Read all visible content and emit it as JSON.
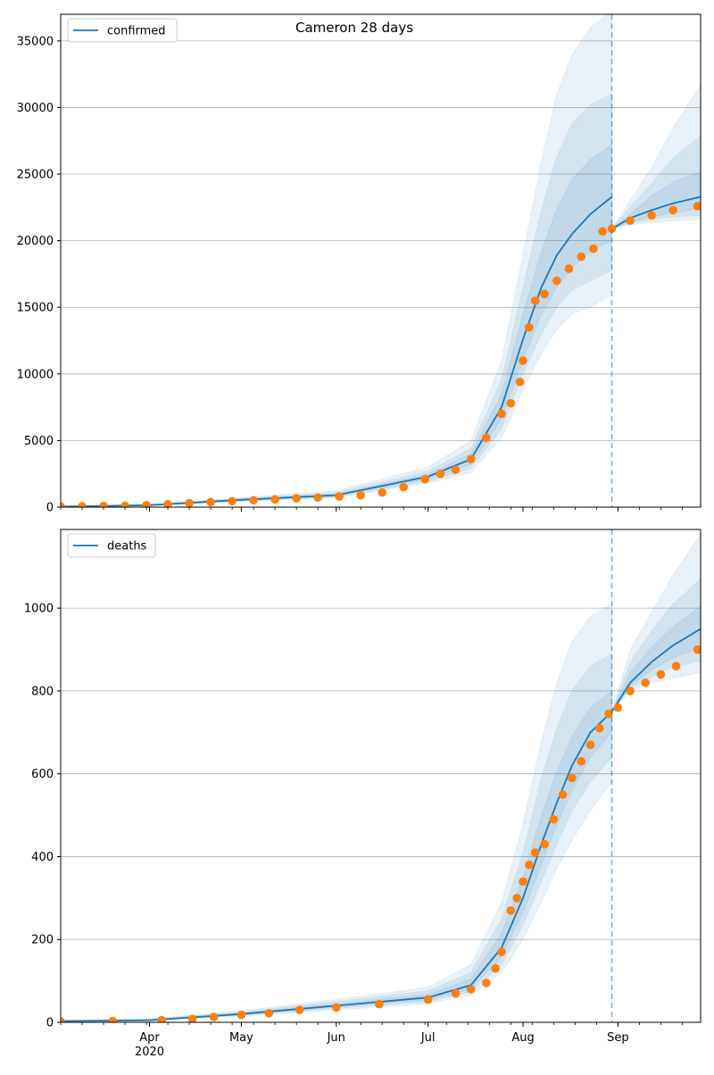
{
  "chart_data": [
    {
      "type": "line",
      "title": "Cameron 28 days",
      "legend": [
        "confirmed"
      ],
      "legend_position": "top-left",
      "grid": "y",
      "ylim": [
        0,
        37000
      ],
      "yticks": [
        0,
        5000,
        10000,
        15000,
        20000,
        25000,
        30000,
        35000
      ],
      "xlim": [
        "2020-03-03",
        "2020-09-28"
      ],
      "xticks": [
        {
          "date": "2020-04-01",
          "label": "Apr",
          "sublabel": "2020"
        },
        {
          "date": "2020-05-01",
          "label": "May"
        },
        {
          "date": "2020-06-01",
          "label": "Jun"
        },
        {
          "date": "2020-07-01",
          "label": "Jul"
        },
        {
          "date": "2020-08-01",
          "label": "Aug"
        },
        {
          "date": "2020-09-01",
          "label": "Sep"
        }
      ],
      "forecast_start": "2020-08-30",
      "colors": {
        "model": "#1f77b4",
        "observed": "#ff7f0e",
        "band": "#1f77b4"
      },
      "model": {
        "name": "confirmed",
        "x": [
          "2020-03-03",
          "2020-04-01",
          "2020-05-01",
          "2020-06-01",
          "2020-07-01",
          "2020-07-15",
          "2020-07-25",
          "2020-08-01",
          "2020-08-07",
          "2020-08-12",
          "2020-08-17",
          "2020-08-23",
          "2020-08-30"
        ],
        "y": [
          40,
          150,
          550,
          900,
          2300,
          3600,
          7500,
          12600,
          16500,
          18900,
          20500,
          22000,
          23300
        ],
        "bands": [
          {
            "lo": [
              30,
              120,
              420,
              700,
              1800,
              2600,
              5200,
              8800,
              11500,
              13300,
              14500,
              15000,
              16000
            ],
            "hi": [
              60,
              200,
              720,
              1250,
              3000,
              5000,
              11000,
              19000,
              26000,
              31000,
              34000,
              36000,
              37200
            ]
          },
          {
            "lo": [
              33,
              130,
              460,
              770,
              1950,
              2900,
              5900,
              10000,
              13000,
              15000,
              16300,
              17000,
              17800
            ],
            "hi": [
              52,
              180,
              660,
              1100,
              2700,
              4400,
              9600,
              16500,
              22300,
              26300,
              28800,
              30200,
              31000
            ]
          },
          {
            "lo": [
              36,
              140,
              500,
              830,
              2100,
              3200,
              6600,
              11000,
              14500,
              16500,
              18000,
              19200,
              20000
            ],
            "hi": [
              46,
              165,
              610,
              980,
              2500,
              4000,
              8500,
              14500,
              19200,
              22400,
              24600,
              26100,
              27200
            ]
          }
        ]
      },
      "forecast": {
        "x": [
          "2020-08-30",
          "2020-09-05",
          "2020-09-12",
          "2020-09-19",
          "2020-09-28"
        ],
        "y": [
          20900,
          21700,
          22300,
          22800,
          23300
        ],
        "bands": [
          {
            "lo": [
              20900,
              21200,
              21400,
              21500,
              21600
            ],
            "hi": [
              20900,
              23000,
              25500,
              28500,
              31700
            ]
          },
          {
            "lo": [
              20900,
              21300,
              21600,
              21800,
              21900
            ],
            "hi": [
              20900,
              22500,
              24300,
              26200,
              27900
            ]
          },
          {
            "lo": [
              20900,
              21400,
              21800,
              22100,
              22400
            ],
            "hi": [
              20900,
              22000,
              23400,
              24400,
              25200
            ]
          }
        ]
      },
      "observed": {
        "x": [
          "2020-03-03",
          "2020-03-10",
          "2020-03-17",
          "2020-03-24",
          "2020-03-31",
          "2020-04-07",
          "2020-04-14",
          "2020-04-21",
          "2020-04-28",
          "2020-05-05",
          "2020-05-12",
          "2020-05-19",
          "2020-05-26",
          "2020-06-02",
          "2020-06-09",
          "2020-06-16",
          "2020-06-23",
          "2020-06-30",
          "2020-07-05",
          "2020-07-10",
          "2020-07-15",
          "2020-07-20",
          "2020-07-25",
          "2020-07-28",
          "2020-07-31",
          "2020-08-01",
          "2020-08-03",
          "2020-08-05",
          "2020-08-08",
          "2020-08-12",
          "2020-08-16",
          "2020-08-20",
          "2020-08-24",
          "2020-08-27",
          "2020-08-30",
          "2020-09-05",
          "2020-09-12",
          "2020-09-19",
          "2020-09-27"
        ],
        "y": [
          50,
          60,
          80,
          100,
          150,
          220,
          300,
          380,
          450,
          520,
          580,
          660,
          720,
          800,
          900,
          1100,
          1500,
          2100,
          2500,
          2800,
          3600,
          5200,
          7000,
          7800,
          9400,
          11000,
          13500,
          15500,
          16000,
          17000,
          17900,
          18800,
          19400,
          20700,
          20900,
          21500,
          21900,
          22300,
          22600
        ]
      }
    },
    {
      "type": "line",
      "title": "",
      "legend": [
        "deaths"
      ],
      "legend_position": "top-left",
      "grid": "y",
      "ylim": [
        0,
        1190
      ],
      "yticks": [
        0,
        200,
        400,
        600,
        800,
        1000
      ],
      "xlim": [
        "2020-03-03",
        "2020-09-28"
      ],
      "xticks": [
        {
          "date": "2020-04-01",
          "label": "Apr",
          "sublabel": "2020"
        },
        {
          "date": "2020-05-01",
          "label": "May"
        },
        {
          "date": "2020-06-01",
          "label": "Jun"
        },
        {
          "date": "2020-07-01",
          "label": "Jul"
        },
        {
          "date": "2020-08-01",
          "label": "Aug"
        },
        {
          "date": "2020-09-01",
          "label": "Sep"
        }
      ],
      "forecast_start": "2020-08-30",
      "colors": {
        "model": "#1f77b4",
        "observed": "#ff7f0e",
        "band": "#1f77b4"
      },
      "model": {
        "name": "deaths",
        "x": [
          "2020-03-03",
          "2020-04-01",
          "2020-05-01",
          "2020-06-01",
          "2020-07-01",
          "2020-07-15",
          "2020-07-25",
          "2020-08-01",
          "2020-08-07",
          "2020-08-12",
          "2020-08-17",
          "2020-08-23",
          "2020-08-30"
        ],
        "y": [
          3,
          5,
          20,
          40,
          60,
          90,
          180,
          300,
          430,
          530,
          620,
          700,
          750
        ],
        "bands": [
          {
            "lo": [
              2,
              4,
              15,
              30,
              45,
              65,
              120,
              200,
              290,
              370,
              440,
              510,
              580
            ],
            "hi": [
              5,
              8,
              28,
              55,
              85,
              140,
              290,
              480,
              680,
              820,
              920,
              980,
              1010
            ]
          },
          {
            "lo": [
              2,
              4,
              17,
              34,
              50,
              73,
              140,
              235,
              340,
              430,
              510,
              580,
              640
            ],
            "hi": [
              4,
              7,
              25,
              50,
              76,
              120,
              250,
              410,
              590,
              710,
              800,
              860,
              890
            ]
          },
          {
            "lo": [
              3,
              5,
              18,
              37,
              54,
              80,
              158,
              265,
              380,
              475,
              560,
              640,
              700
            ],
            "hi": [
              4,
              6,
              22,
              45,
              68,
              105,
              215,
              350,
              500,
              605,
              690,
              760,
              800
            ]
          }
        ]
      },
      "forecast": {
        "x": [
          "2020-08-30",
          "2020-09-05",
          "2020-09-12",
          "2020-09-19",
          "2020-09-28"
        ],
        "y": [
          750,
          820,
          870,
          910,
          950
        ],
        "bands": [
          {
            "lo": [
              750,
              800,
              820,
              830,
              845
            ],
            "hi": [
              750,
              900,
              990,
              1080,
              1180
            ]
          },
          {
            "lo": [
              750,
              806,
              835,
              858,
              872
            ],
            "hi": [
              750,
              870,
              945,
              1010,
              1070
            ]
          },
          {
            "lo": [
              750,
              812,
              850,
              880,
              905
            ],
            "hi": [
              750,
              845,
              905,
              955,
              1005
            ]
          }
        ]
      },
      "observed": {
        "x": [
          "2020-03-03",
          "2020-03-20",
          "2020-04-05",
          "2020-04-15",
          "2020-04-22",
          "2020-05-01",
          "2020-05-10",
          "2020-05-20",
          "2020-06-01",
          "2020-06-15",
          "2020-07-01",
          "2020-07-10",
          "2020-07-15",
          "2020-07-20",
          "2020-07-23",
          "2020-07-25",
          "2020-07-28",
          "2020-07-30",
          "2020-08-01",
          "2020-08-03",
          "2020-08-05",
          "2020-08-08",
          "2020-08-11",
          "2020-08-14",
          "2020-08-17",
          "2020-08-20",
          "2020-08-23",
          "2020-08-26",
          "2020-08-29",
          "2020-09-01",
          "2020-09-05",
          "2020-09-10",
          "2020-09-15",
          "2020-09-20",
          "2020-09-27"
        ],
        "y": [
          2,
          3,
          5,
          8,
          13,
          18,
          22,
          30,
          36,
          44,
          55,
          70,
          80,
          95,
          130,
          170,
          270,
          300,
          340,
          380,
          410,
          430,
          490,
          550,
          590,
          630,
          670,
          710,
          745,
          760,
          800,
          820,
          840,
          860,
          900
        ]
      }
    }
  ]
}
